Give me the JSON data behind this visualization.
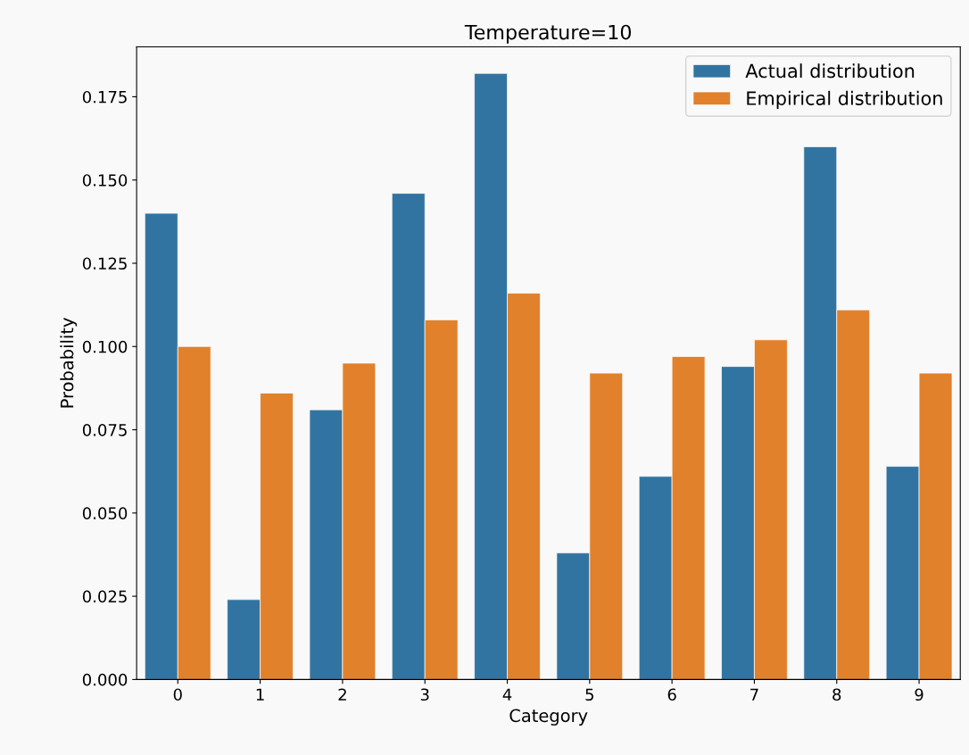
{
  "chart_data": {
    "type": "bar",
    "title": "Temperature=10",
    "xlabel": "Category",
    "ylabel": "Probability",
    "categories": [
      "0",
      "1",
      "2",
      "3",
      "4",
      "5",
      "6",
      "7",
      "8",
      "9"
    ],
    "series": [
      {
        "name": "Actual distribution",
        "color": "#3274a1",
        "values": [
          0.14,
          0.024,
          0.081,
          0.146,
          0.182,
          0.038,
          0.061,
          0.094,
          0.16,
          0.064
        ]
      },
      {
        "name": "Empirical distribution",
        "color": "#e1812c",
        "values": [
          0.1,
          0.086,
          0.095,
          0.108,
          0.116,
          0.092,
          0.097,
          0.102,
          0.111,
          0.092
        ]
      }
    ],
    "ylim": [
      0,
      0.19
    ],
    "yticks": [
      {
        "value": 0,
        "label": "0.000"
      },
      {
        "value": 0.025,
        "label": "0.025"
      },
      {
        "value": 0.05,
        "label": "0.050"
      },
      {
        "value": 0.075,
        "label": "0.075"
      },
      {
        "value": 0.1,
        "label": "0.100"
      },
      {
        "value": 0.125,
        "label": "0.125"
      },
      {
        "value": 0.15,
        "label": "0.150"
      },
      {
        "value": 0.175,
        "label": "0.175"
      }
    ],
    "legend": "top right",
    "grid": false
  }
}
